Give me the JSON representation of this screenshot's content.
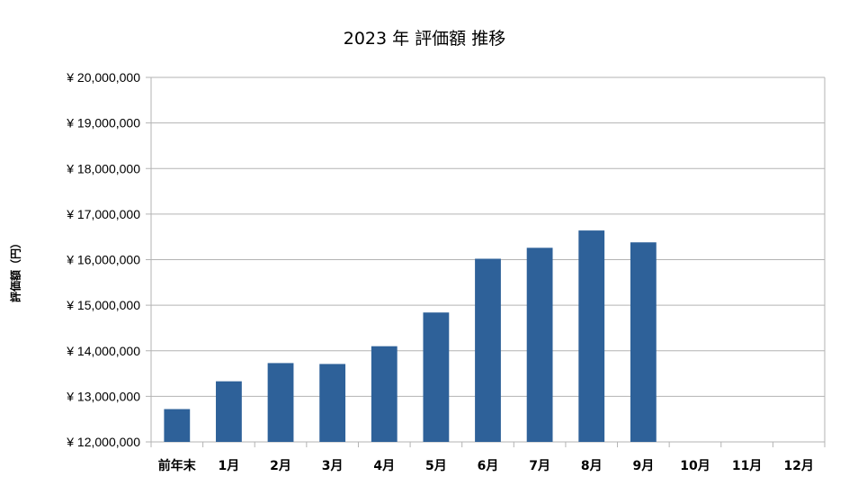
{
  "chart_data": {
    "type": "bar",
    "title": "2023 年 評価額 推移",
    "xlabel": "",
    "ylabel": "評価額（円）",
    "categories": [
      "前年末",
      "1月",
      "2月",
      "3月",
      "4月",
      "5月",
      "6月",
      "7月",
      "8月",
      "9月",
      "10月",
      "11月",
      "12月"
    ],
    "values": [
      12720000,
      13330000,
      13730000,
      13710000,
      14100000,
      14840000,
      16020000,
      16260000,
      16640000,
      16380000,
      null,
      null,
      null
    ],
    "ylim": [
      12000000,
      20000000
    ],
    "yticks": [
      12000000,
      13000000,
      14000000,
      15000000,
      16000000,
      17000000,
      18000000,
      19000000,
      20000000
    ],
    "ytick_labels": [
      "¥ 12,000,000",
      "¥ 13,000,000",
      "¥ 14,000,000",
      "¥ 15,000,000",
      "¥ 16,000,000",
      "¥ 17,000,000",
      "¥ 18,000,000",
      "¥ 19,000,000",
      "¥ 20,000,000"
    ],
    "grid": true,
    "legend": "none",
    "bar_color": "#2e6199",
    "grid_color": "#b3b3b3"
  }
}
